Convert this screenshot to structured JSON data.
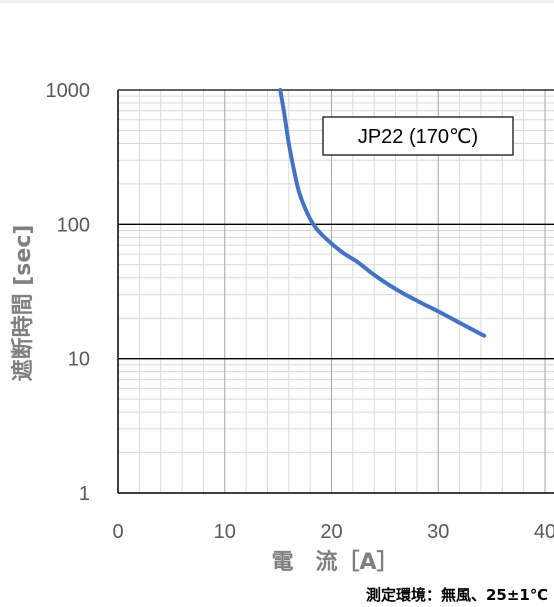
{
  "chart_data": {
    "type": "line",
    "xlabel": "電　流［A］",
    "ylabel": "遮断時間 [sec]",
    "xlim": [
      0,
      40
    ],
    "ylim": [
      1,
      1000
    ],
    "y_scale": "log",
    "x_ticks": [
      "0",
      "10",
      "20",
      "30",
      "40"
    ],
    "y_ticks": [
      "1",
      "10",
      "100",
      "1000"
    ],
    "grid": true,
    "legend_position": "top-right",
    "series": [
      {
        "name": "JP22 (170℃)",
        "color": "#4472c4",
        "x": [
          15.2,
          15.6,
          16.0,
          16.5,
          17.0,
          17.8,
          18.5,
          19.5,
          21.0,
          22.5,
          24.0,
          26.0,
          28.0,
          30.0,
          32.0,
          34.3
        ],
        "y": [
          1000,
          650,
          400,
          250,
          170,
          118,
          95,
          78,
          62,
          52,
          42,
          33,
          27,
          22.5,
          18.5,
          14.8
        ]
      }
    ]
  },
  "footnote": "測定環境：無風、25±1℃"
}
